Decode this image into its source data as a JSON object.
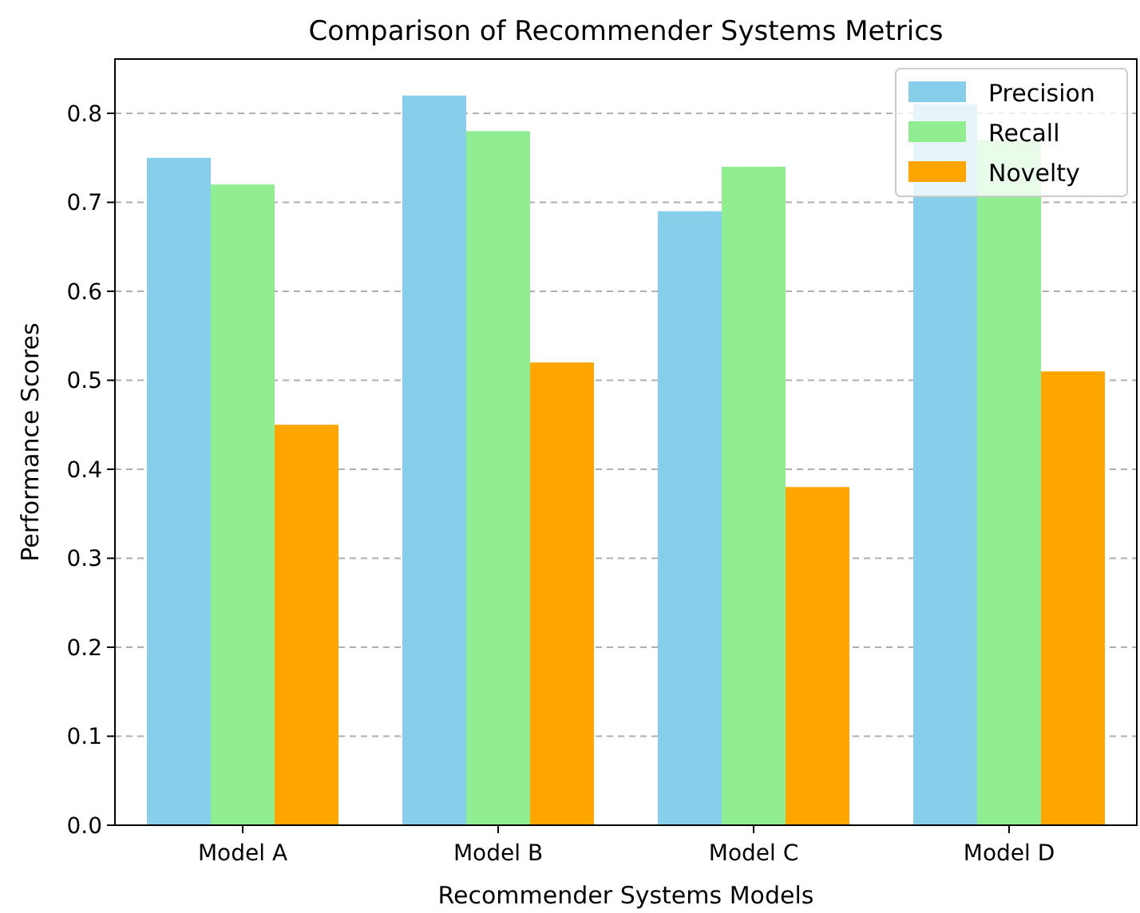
{
  "chart_data": {
    "type": "bar",
    "title": "Comparison of Recommender Systems Metrics",
    "xlabel": "Recommender Systems Models",
    "ylabel": "Performance Scores",
    "categories": [
      "Model A",
      "Model B",
      "Model C",
      "Model D"
    ],
    "series": [
      {
        "name": "Precision",
        "color": "#87ceeb",
        "values": [
          0.75,
          0.82,
          0.69,
          0.81
        ]
      },
      {
        "name": "Recall",
        "color": "#90ee90",
        "values": [
          0.72,
          0.78,
          0.74,
          0.77
        ]
      },
      {
        "name": "Novelty",
        "color": "#ffa500",
        "values": [
          0.45,
          0.52,
          0.38,
          0.51
        ]
      }
    ],
    "ylim": [
      0,
      0.861
    ],
    "yticks": [
      {
        "value": 0,
        "label": "0.0"
      },
      0.1,
      0.2,
      0.3,
      0.4,
      0.5,
      0.6,
      0.7,
      0.8
    ],
    "grid": "y",
    "legend": "top right"
  }
}
